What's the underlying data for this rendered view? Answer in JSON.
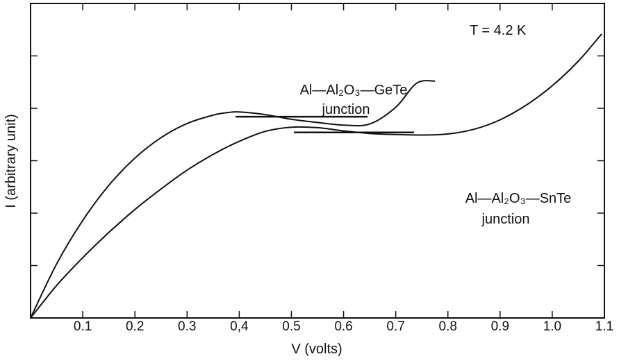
{
  "chart_data": {
    "type": "line",
    "title": "",
    "xlabel": "V (volts)",
    "ylabel": "I (arbitrary unit)",
    "xlim": [
      0,
      1.1
    ],
    "ylim": [
      0,
      6
    ],
    "grid": false,
    "x_ticks": [
      {
        "value": 0.1,
        "label": "0.1"
      },
      {
        "value": 0.2,
        "label": "0.2"
      },
      {
        "value": 0.3,
        "label": "0.3"
      },
      {
        "value": 0.4,
        "label": "0,4"
      },
      {
        "value": 0.5,
        "label": "0.5"
      },
      {
        "value": 0.6,
        "label": "0.6"
      },
      {
        "value": 0.7,
        "label": "0.7"
      },
      {
        "value": 0.8,
        "label": "0.8"
      },
      {
        "value": 0.9,
        "label": "0.9"
      },
      {
        "value": 1.0,
        "label": "1.0"
      },
      {
        "value": 1.1,
        "label": "1.1"
      }
    ],
    "y_ticks": [
      1,
      2,
      3,
      4,
      5
    ],
    "series": [
      {
        "key": "gete",
        "label_line1": "Al—Al₂O₃—GeTe",
        "label_line2": "junction",
        "points": [
          [
            0,
            0
          ],
          [
            0.05,
            1.03
          ],
          [
            0.1,
            1.86
          ],
          [
            0.15,
            2.53
          ],
          [
            0.2,
            3.05
          ],
          [
            0.25,
            3.44
          ],
          [
            0.3,
            3.71
          ],
          [
            0.35,
            3.87
          ],
          [
            0.38,
            3.92
          ],
          [
            0.4,
            3.93
          ],
          [
            0.45,
            3.88
          ],
          [
            0.5,
            3.79
          ],
          [
            0.55,
            3.73
          ],
          [
            0.6,
            3.68
          ],
          [
            0.65,
            3.7
          ],
          [
            0.7,
            4.02
          ],
          [
            0.74,
            4.48
          ],
          [
            0.775,
            4.52
          ]
        ],
        "bar": {
          "x1": 0.393,
          "x2": 0.646,
          "y": 3.84
        }
      },
      {
        "key": "snte",
        "label_line1": "Al—Al₂O₃—SnTe",
        "label_line2": "junction",
        "points": [
          [
            0,
            0
          ],
          [
            0.05,
            0.62
          ],
          [
            0.1,
            1.15
          ],
          [
            0.15,
            1.63
          ],
          [
            0.2,
            2.07
          ],
          [
            0.25,
            2.46
          ],
          [
            0.3,
            2.82
          ],
          [
            0.35,
            3.12
          ],
          [
            0.4,
            3.37
          ],
          [
            0.45,
            3.56
          ],
          [
            0.5,
            3.64
          ],
          [
            0.55,
            3.63
          ],
          [
            0.6,
            3.57
          ],
          [
            0.65,
            3.52
          ],
          [
            0.7,
            3.5
          ],
          [
            0.75,
            3.49
          ],
          [
            0.8,
            3.51
          ],
          [
            0.85,
            3.6
          ],
          [
            0.9,
            3.78
          ],
          [
            0.95,
            4.06
          ],
          [
            1.0,
            4.43
          ],
          [
            1.05,
            4.9
          ],
          [
            1.095,
            5.42
          ]
        ],
        "bar": {
          "x1": 0.505,
          "x2": 0.735,
          "y": 3.54
        }
      }
    ],
    "annotations": {
      "temperature": "T = 4.2 K"
    }
  }
}
